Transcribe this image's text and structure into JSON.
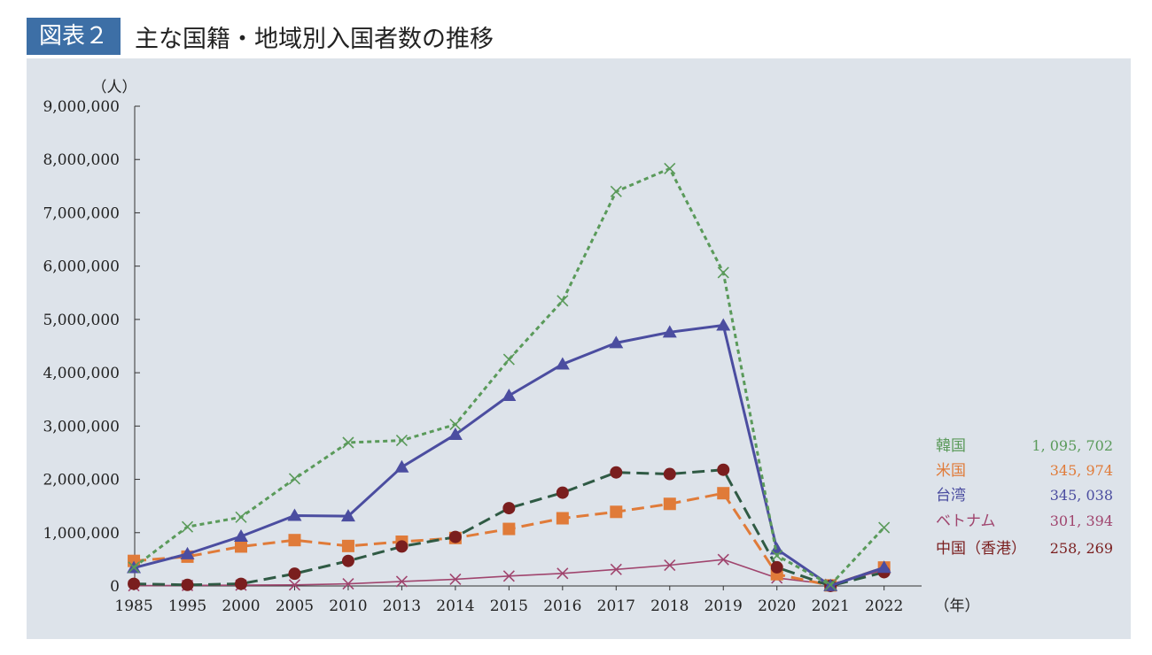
{
  "header": {
    "figure_label": "図表２",
    "title": "主な国籍・地域別入国者数の推移"
  },
  "chart_data": {
    "type": "line",
    "title": "主な国籍・地域別入国者数の推移",
    "ylabel": "（人）",
    "xlabel": "（年）",
    "ylim": [
      0,
      9000000
    ],
    "y_ticks": [
      "0",
      "1,000,000",
      "2,000,000",
      "3,000,000",
      "4,000,000",
      "5,000,000",
      "6,000,000",
      "7,000,000",
      "8,000,000",
      "9,000,000"
    ],
    "y_tick_values": [
      0,
      1000000,
      2000000,
      3000000,
      4000000,
      5000000,
      6000000,
      7000000,
      8000000,
      9000000
    ],
    "categories": [
      "1985",
      "1995",
      "2000",
      "2005",
      "2010",
      "2013",
      "2014",
      "2015",
      "2016",
      "2017",
      "2018",
      "2019",
      "2020",
      "2021",
      "2022"
    ],
    "grid": false,
    "legend_position": "right",
    "series": [
      {
        "name": "韓国",
        "label_2022": "1, 095, 702",
        "color": "#5a9a5a",
        "marker": "x",
        "dash": "short",
        "values": [
          350000,
          1110000,
          1290000,
          2010000,
          2690000,
          2730000,
          3030000,
          4250000,
          5350000,
          7400000,
          7830000,
          5880000,
          570000,
          20000,
          1095702
        ]
      },
      {
        "name": "米国",
        "label_2022": "345, 974",
        "color": "#e07b39",
        "marker": "square",
        "dash": "long",
        "values": [
          470000,
          550000,
          740000,
          860000,
          750000,
          830000,
          900000,
          1070000,
          1270000,
          1390000,
          1540000,
          1740000,
          220000,
          10000,
          345974
        ]
      },
      {
        "name": "台湾",
        "label_2022": "345, 038",
        "color": "#4b4da0",
        "marker": "triangle",
        "dash": "solid",
        "values": [
          340000,
          600000,
          930000,
          1320000,
          1310000,
          2230000,
          2840000,
          3570000,
          4160000,
          4560000,
          4760000,
          4890000,
          690000,
          5000,
          345038
        ]
      },
      {
        "name": "ベトナム",
        "label_2022": "301, 394",
        "color": "#a0456e",
        "marker": "x",
        "dash": "solid",
        "values": [
          5000,
          10000,
          15000,
          20000,
          40000,
          84000,
          125000,
          185000,
          235000,
          310000,
          390000,
          495000,
          150000,
          30000,
          301394
        ]
      },
      {
        "name": "中国（香港）",
        "label_2022": "258, 269",
        "color": "#7a1e1e",
        "marker": "circle",
        "line_color": "#2f5a44",
        "dash": "long",
        "values": [
          40000,
          20000,
          40000,
          230000,
          470000,
          740000,
          920000,
          1460000,
          1750000,
          2130000,
          2100000,
          2180000,
          350000,
          1000,
          258269
        ]
      }
    ]
  }
}
